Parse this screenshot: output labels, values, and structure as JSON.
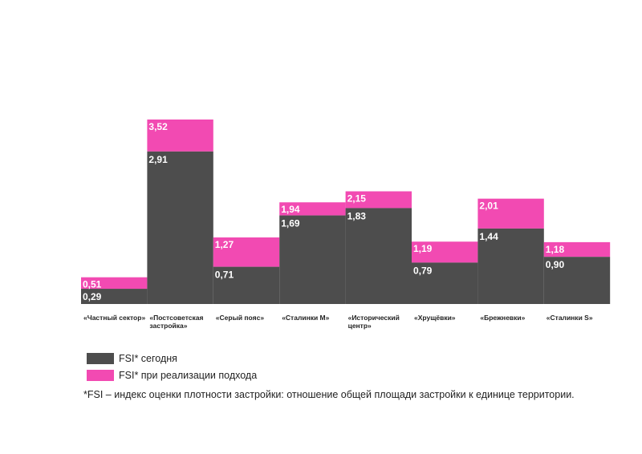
{
  "chart_data": {
    "type": "bar",
    "categories": [
      [
        "«Частный сектор»"
      ],
      [
        "«Постсоветская",
        "застройка»"
      ],
      [
        "«Серый пояс»"
      ],
      [
        "«Сталинки M»"
      ],
      [
        "«Исторический",
        "центр»"
      ],
      [
        "«Хрущёвки»"
      ],
      [
        "«Брежневки»"
      ],
      [
        "«Сталинки S»"
      ]
    ],
    "series": [
      {
        "name": "FSI* сегодня",
        "color": "#4d4d4d",
        "values": [
          0.29,
          2.91,
          0.71,
          1.69,
          1.83,
          0.79,
          1.44,
          0.9
        ],
        "labels": [
          "0,29",
          "2,91",
          "0,71",
          "1,69",
          "1,83",
          "0,79",
          "1,44",
          "0,90"
        ]
      },
      {
        "name": "FSI* при реализации подхода",
        "color": "#f24ab2",
        "values": [
          0.51,
          3.52,
          1.27,
          1.94,
          2.15,
          1.19,
          2.01,
          1.18
        ],
        "labels": [
          "0,51",
          "3,52",
          "1,27",
          "1,94",
          "2,15",
          "1,19",
          "2,01",
          "1,18"
        ]
      }
    ],
    "ylim": [
      0,
      3.52
    ],
    "grid": false,
    "legend_position": "bottom-left"
  },
  "legend": [
    {
      "label": "FSI* сегодня",
      "color": "#4d4d4d"
    },
    {
      "label": "FSI* при реализации подхода",
      "color": "#f24ab2"
    }
  ],
  "footnote": "*FSI – индекс оценки плотности застройки: отношение общей площади застройки к единице территории."
}
